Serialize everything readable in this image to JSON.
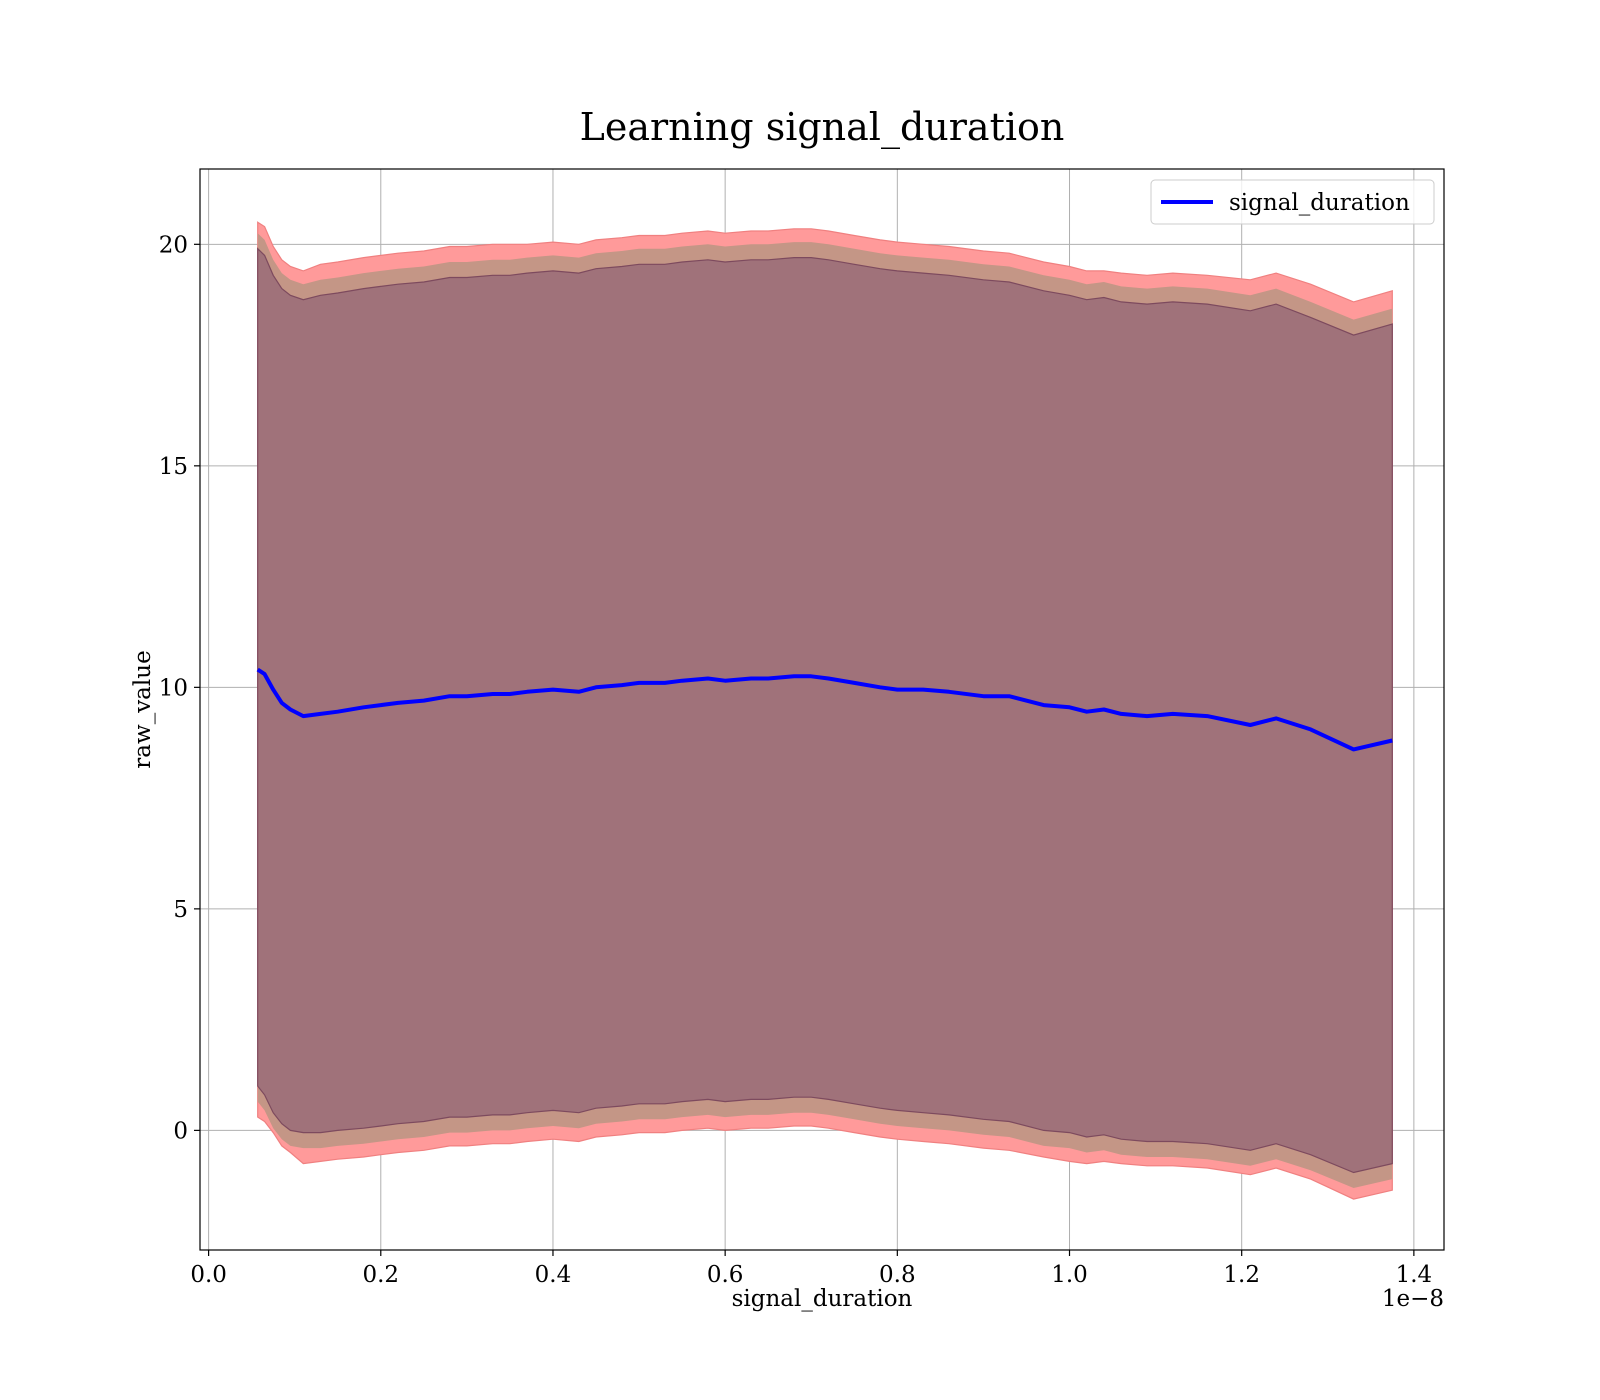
{
  "chart_data": {
    "type": "line",
    "title": "Learning signal_duration",
    "xlabel": "signal_duration",
    "ylabel": "raw_value",
    "x_offset_label": "1e−8",
    "xlim": [
      -0.01,
      1.435
    ],
    "ylim": [
      -2.7,
      21.7
    ],
    "xticks": [
      0.0,
      0.2,
      0.4,
      0.6,
      0.8,
      1.0,
      1.2,
      1.4
    ],
    "xtick_labels": [
      "0.0",
      "0.2",
      "0.4",
      "0.6",
      "0.8",
      "1.0",
      "1.2",
      "1.4"
    ],
    "yticks": [
      0,
      5,
      10,
      15,
      20
    ],
    "ytick_labels": [
      "0",
      "5",
      "10",
      "15",
      "20"
    ],
    "grid": true,
    "legend_position": "top-right",
    "series": [
      {
        "name": "signal_duration",
        "color": "#0000ff",
        "x": [
          0.057,
          0.065,
          0.075,
          0.085,
          0.095,
          0.11,
          0.13,
          0.15,
          0.18,
          0.2,
          0.22,
          0.25,
          0.28,
          0.3,
          0.33,
          0.35,
          0.37,
          0.4,
          0.43,
          0.45,
          0.48,
          0.5,
          0.53,
          0.55,
          0.58,
          0.6,
          0.63,
          0.65,
          0.68,
          0.7,
          0.72,
          0.75,
          0.78,
          0.8,
          0.83,
          0.86,
          0.9,
          0.93,
          0.97,
          1.0,
          1.02,
          1.04,
          1.06,
          1.09,
          1.12,
          1.16,
          1.21,
          1.24,
          1.28,
          1.33,
          1.375
        ],
        "y": [
          10.4,
          10.3,
          9.95,
          9.65,
          9.5,
          9.35,
          9.4,
          9.45,
          9.55,
          9.6,
          9.65,
          9.7,
          9.8,
          9.8,
          9.85,
          9.85,
          9.9,
          9.95,
          9.9,
          10.0,
          10.05,
          10.1,
          10.1,
          10.15,
          10.2,
          10.15,
          10.2,
          10.2,
          10.25,
          10.25,
          10.2,
          10.1,
          10.0,
          9.95,
          9.95,
          9.9,
          9.8,
          9.8,
          9.6,
          9.55,
          9.45,
          9.5,
          9.4,
          9.35,
          9.4,
          9.35,
          9.15,
          9.3,
          9.05,
          8.6,
          8.8
        ],
        "band_outer_upper": [
          20.5,
          20.4,
          19.95,
          19.65,
          19.5,
          19.4,
          19.55,
          19.6,
          19.7,
          19.75,
          19.8,
          19.85,
          19.95,
          19.95,
          20.0,
          20.0,
          20.0,
          20.05,
          20.0,
          20.1,
          20.15,
          20.2,
          20.2,
          20.25,
          20.3,
          20.25,
          20.3,
          20.3,
          20.35,
          20.35,
          20.3,
          20.2,
          20.1,
          20.05,
          20.0,
          19.95,
          19.85,
          19.8,
          19.6,
          19.5,
          19.4,
          19.4,
          19.35,
          19.3,
          19.35,
          19.3,
          19.2,
          19.35,
          19.1,
          18.7,
          18.95
        ],
        "band_outer_lower": [
          0.3,
          0.2,
          -0.05,
          -0.35,
          -0.5,
          -0.75,
          -0.7,
          -0.65,
          -0.6,
          -0.55,
          -0.5,
          -0.45,
          -0.35,
          -0.35,
          -0.3,
          -0.3,
          -0.25,
          -0.2,
          -0.25,
          -0.15,
          -0.1,
          -0.05,
          -0.05,
          0.0,
          0.05,
          0.0,
          0.05,
          0.05,
          0.1,
          0.1,
          0.05,
          -0.05,
          -0.15,
          -0.2,
          -0.25,
          -0.3,
          -0.4,
          -0.45,
          -0.6,
          -0.7,
          -0.75,
          -0.7,
          -0.75,
          -0.8,
          -0.8,
          -0.85,
          -1.0,
          -0.85,
          -1.1,
          -1.55,
          -1.35
        ],
        "band_inner_upper": [
          19.9,
          19.75,
          19.3,
          19.0,
          18.85,
          18.75,
          18.85,
          18.9,
          19.0,
          19.05,
          19.1,
          19.15,
          19.25,
          19.25,
          19.3,
          19.3,
          19.35,
          19.4,
          19.35,
          19.45,
          19.5,
          19.55,
          19.55,
          19.6,
          19.65,
          19.6,
          19.65,
          19.65,
          19.7,
          19.7,
          19.65,
          19.55,
          19.45,
          19.4,
          19.35,
          19.3,
          19.2,
          19.15,
          18.95,
          18.85,
          18.75,
          18.8,
          18.7,
          18.65,
          18.7,
          18.65,
          18.5,
          18.65,
          18.35,
          17.95,
          18.2
        ],
        "band_inner_lower": [
          1.0,
          0.8,
          0.4,
          0.15,
          0.0,
          -0.05,
          -0.05,
          0.0,
          0.05,
          0.1,
          0.15,
          0.2,
          0.3,
          0.3,
          0.35,
          0.35,
          0.4,
          0.45,
          0.4,
          0.5,
          0.55,
          0.6,
          0.6,
          0.65,
          0.7,
          0.65,
          0.7,
          0.7,
          0.75,
          0.75,
          0.7,
          0.6,
          0.5,
          0.45,
          0.4,
          0.35,
          0.25,
          0.2,
          0.0,
          -0.05,
          -0.15,
          -0.1,
          -0.2,
          -0.25,
          -0.25,
          -0.3,
          -0.45,
          -0.3,
          -0.55,
          -0.95,
          -0.75
        ]
      }
    ],
    "colors": {
      "line": "#0000ff",
      "band_outer": "#ff9a9a",
      "band_outer_edge": "#f08080",
      "band_mid": "#c49686",
      "band_inner": "#a0727a",
      "band_inner_edge": "#7d4a5e"
    }
  }
}
